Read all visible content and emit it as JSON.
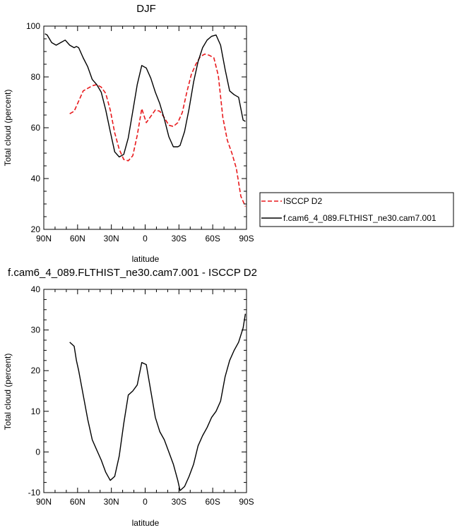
{
  "chart_data": [
    {
      "type": "line",
      "title": "DJF",
      "xlabel": "latitude",
      "ylabel": "Total cloud (percent)",
      "xlim": [
        -90,
        90
      ],
      "ylim": [
        20,
        100
      ],
      "x_ticks": [
        -90,
        -60,
        -30,
        0,
        30,
        60,
        90
      ],
      "x_tick_labels": [
        "90N",
        "60N",
        "30N",
        "0",
        "30S",
        "60S",
        "90S"
      ],
      "y_ticks": [
        20,
        40,
        60,
        80,
        100
      ],
      "y_tick_labels": [
        "20",
        "40",
        "60",
        "80",
        "100"
      ],
      "legend": "right",
      "series": [
        {
          "name": "ISCCP D2",
          "color": "#e8191c",
          "dash": true,
          "x": [
            -67,
            -63,
            -59,
            -55,
            -51,
            -47,
            -43,
            -39,
            -35,
            -31,
            -27,
            -23,
            -19,
            -15,
            -11,
            -7,
            -3,
            1,
            5,
            9,
            13,
            17,
            21,
            25,
            29,
            33,
            37,
            41,
            45,
            49,
            53,
            57,
            61,
            65,
            69,
            73,
            77,
            81,
            85,
            89
          ],
          "values": [
            65.5,
            66.5,
            70.5,
            74.5,
            75.5,
            76.5,
            77,
            76,
            73.5,
            67,
            58,
            51.5,
            47.5,
            47,
            49,
            57,
            67.5,
            62,
            64.5,
            67,
            66.5,
            64,
            61,
            60.5,
            62,
            66,
            74,
            81,
            85,
            88,
            89,
            88.5,
            87.5,
            80.5,
            64,
            55,
            50,
            44,
            33,
            29
          ]
        },
        {
          "name": "f.cam6_4_089.FLTHIST_ne30.cam7.001",
          "color": "#000000",
          "dash": false,
          "x": [
            -89,
            -87,
            -83,
            -79,
            -75,
            -71,
            -67,
            -63,
            -61,
            -59,
            -55,
            -51,
            -47,
            -43,
            -39,
            -35,
            -31,
            -27,
            -23,
            -19,
            -15,
            -11,
            -7,
            -3,
            1,
            5,
            9,
            13,
            17,
            21,
            25,
            29,
            31,
            35,
            39,
            43,
            47,
            51,
            55,
            59,
            63,
            67,
            71,
            75,
            79,
            83,
            87,
            89
          ],
          "values": [
            97,
            96.5,
            93.5,
            92.5,
            93.5,
            94.5,
            92.5,
            91.5,
            92,
            91.5,
            87.5,
            84,
            79,
            77,
            74,
            67,
            58.5,
            50.5,
            48.5,
            49.5,
            56,
            66.5,
            77,
            84.5,
            83.5,
            79.5,
            74,
            69.5,
            63.5,
            56.5,
            52.5,
            52.5,
            53,
            58.5,
            67.5,
            78,
            86,
            91.5,
            94.5,
            96,
            96.5,
            92.5,
            83,
            74.5,
            73,
            72,
            63,
            62.5
          ]
        }
      ]
    },
    {
      "type": "line",
      "title": "f.cam6_4_089.FLTHIST_ne30.cam7.001 - ISCCP D2",
      "xlabel": "latitude",
      "ylabel": "Total cloud (percent)",
      "xlim": [
        -90,
        90
      ],
      "ylim": [
        -10,
        40
      ],
      "x_ticks": [
        -90,
        -60,
        -30,
        0,
        30,
        60,
        90
      ],
      "x_tick_labels": [
        "90N",
        "60N",
        "30N",
        "0",
        "30S",
        "60S",
        "90S"
      ],
      "y_ticks": [
        -10,
        0,
        10,
        20,
        30,
        40
      ],
      "y_tick_labels": [
        "-10",
        "0",
        "10",
        "20",
        "30",
        "40"
      ],
      "series": [
        {
          "color": "#000000",
          "dash": false,
          "x": [
            -67,
            -63,
            -61,
            -59,
            -55,
            -51,
            -47,
            -43,
            -39,
            -35,
            -31,
            -27,
            -23,
            -19,
            -15,
            -11,
            -7,
            -3,
            1,
            5,
            9,
            13,
            17,
            21,
            25,
            29,
            31,
            35,
            39,
            43,
            47,
            51,
            55,
            59,
            63,
            67,
            71,
            75,
            79,
            83,
            87,
            89
          ],
          "values": [
            27,
            26,
            22.5,
            20,
            14,
            8,
            3,
            0.5,
            -2,
            -5,
            -7,
            -6,
            -1,
            7,
            14,
            15,
            16.5,
            22,
            21.5,
            15,
            8.5,
            5,
            3,
            0,
            -3,
            -7,
            -9.5,
            -8.5,
            -6,
            -3,
            1.5,
            4,
            6,
            8.5,
            10,
            12.5,
            18.5,
            22.5,
            25,
            27,
            30.5,
            34
          ]
        }
      ]
    }
  ]
}
